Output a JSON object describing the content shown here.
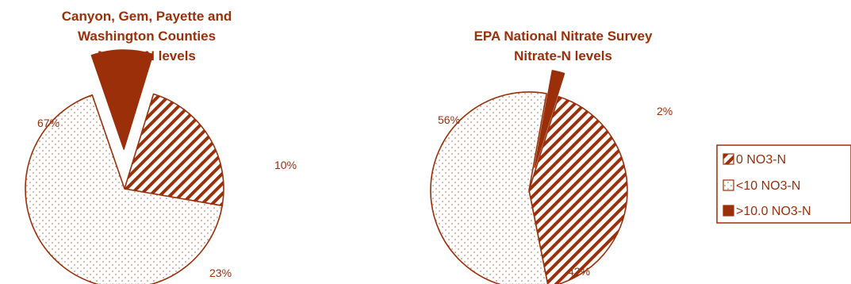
{
  "colors": {
    "brand": "#9a2f0a",
    "text": "#9a2f0a",
    "dots": "#b0654a",
    "background": "#ffffff"
  },
  "legend": {
    "items": [
      {
        "label": "0  NO3-N",
        "pattern": "hatch"
      },
      {
        "label": "<10  NO3-N",
        "pattern": "dots"
      },
      {
        "label": ">10.0  NO3-N",
        "pattern": "solid"
      }
    ]
  },
  "chart_data": [
    {
      "type": "pie",
      "title": "Canyon, Gem, Payette and Washington Counties Nitrate-N levels",
      "title_lines": [
        "Canyon, Gem, Payette and",
        "Washington Counties",
        "Nitrate-N levels"
      ],
      "slices": [
        {
          "category": "0 NO3-N",
          "value": 23,
          "label": "23%",
          "pattern": "hatch",
          "exploded": false
        },
        {
          "category": "<10 NO3-N",
          "value": 67,
          "label": "67%",
          "pattern": "dots",
          "exploded": false
        },
        {
          "category": ">10.0 NO3-N",
          "value": 10,
          "label": "10%",
          "pattern": "solid",
          "exploded": true
        }
      ]
    },
    {
      "type": "pie",
      "title": "EPA National Nitrate Survey Nitrate-N levels",
      "title_lines": [
        "EPA National Nitrate Survey",
        "Nitrate-N levels"
      ],
      "slices": [
        {
          "category": "0 NO3-N",
          "value": 42,
          "label": "42%",
          "pattern": "hatch",
          "exploded": false
        },
        {
          "category": "<10 NO3-N",
          "value": 56,
          "label": "56%",
          "pattern": "dots",
          "exploded": false
        },
        {
          "category": ">10.0 NO3-N",
          "value": 2,
          "label": "2%",
          "pattern": "solid",
          "exploded": true
        }
      ]
    }
  ]
}
